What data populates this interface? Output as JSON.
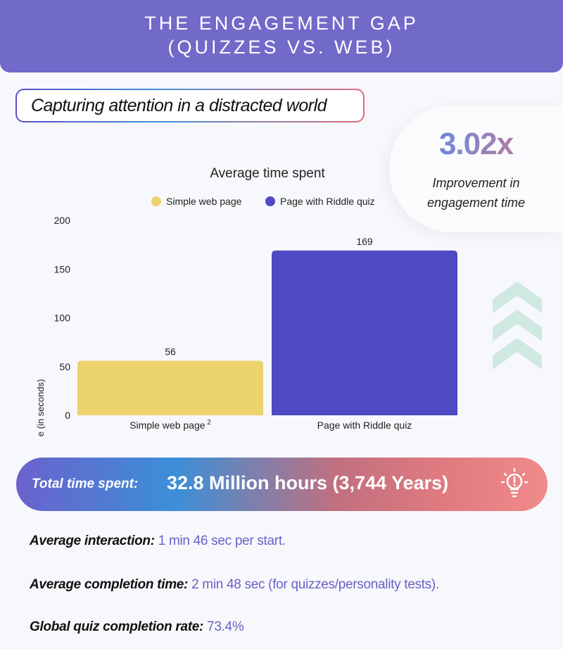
{
  "header": {
    "title_line1": "THE ENGAGEMENT GAP",
    "title_line2": "(QUIZZES VS. WEB)"
  },
  "tagline": "Capturing attention in a distracted world",
  "callout": {
    "value": "3.02x",
    "description_line1": "Improvement in",
    "description_line2": "engagement time"
  },
  "chart_data": {
    "type": "bar",
    "title": "Average time spent",
    "categories": [
      "Simple web page",
      "Page with Riddle quiz"
    ],
    "category_superscripts": [
      "2",
      ""
    ],
    "series": [
      {
        "name": "Simple web page",
        "values": [
          56,
          null
        ],
        "color": "#ecd36e"
      },
      {
        "name": "Page with Riddle quiz",
        "values": [
          null,
          169
        ],
        "color": "#4f49c3"
      }
    ],
    "values": [
      56,
      169
    ],
    "data_labels": [
      "56",
      "169"
    ],
    "ylabel": "Time (in seconds)",
    "xlabel": "",
    "ylim": [
      0,
      200
    ],
    "yticks": [
      "0",
      "50",
      "100",
      "150",
      "200"
    ],
    "grid": false,
    "legend": "top"
  },
  "banner": {
    "label": "Total time spent:",
    "value": "32.8 Million hours (3,744 Years)",
    "icon": "lightbulb-icon"
  },
  "stats": [
    {
      "label": "Average interaction:",
      "value": "1 min 46 sec per start."
    },
    {
      "label": "Average completion time:",
      "value": "2 min 48 sec (for quizzes/personality tests)."
    },
    {
      "label": "Global quiz completion rate:",
      "value": "73.4%"
    }
  ],
  "colors": {
    "header": "#716ac9",
    "accent": "#6a5fc8",
    "arrows": "#cfe8e2"
  }
}
